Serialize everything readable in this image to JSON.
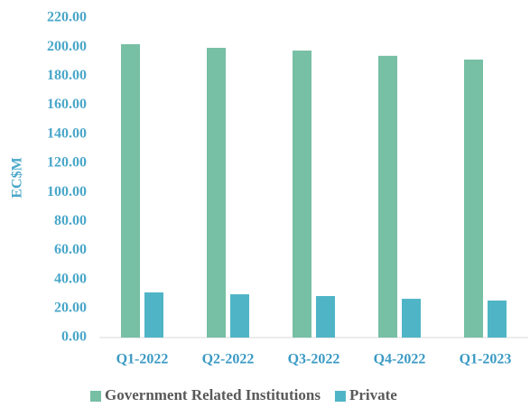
{
  "chart_data": {
    "type": "bar",
    "y_label": "EC$M",
    "categories": [
      "Q1-2022",
      "Q2-2022",
      "Q3-2022",
      "Q4-2022",
      "Q1-2023"
    ],
    "series": [
      {
        "name": "Government Related Institutions",
        "color": "#77bfa5",
        "values": [
          202,
          199.5,
          197.6,
          194,
          191.4
        ]
      },
      {
        "name": "Private",
        "color": "#4fb5c6",
        "values": [
          31.1,
          29.8,
          28.6,
          26.7,
          25.5
        ]
      }
    ],
    "ylim": [
      0,
      220
    ],
    "yticks": [
      {
        "value": 0,
        "label": "0.00"
      },
      {
        "value": 20,
        "label": "20.00"
      },
      {
        "value": 40,
        "label": "40.00"
      },
      {
        "value": 60,
        "label": "60.00"
      },
      {
        "value": 80,
        "label": "80.00"
      },
      {
        "value": 100,
        "label": "100.00"
      },
      {
        "value": 120,
        "label": "120.00"
      },
      {
        "value": 140,
        "label": "140.00"
      },
      {
        "value": 160,
        "label": "160.00"
      },
      {
        "value": 180,
        "label": "180.00"
      },
      {
        "value": 200,
        "label": "200.00"
      },
      {
        "value": 220,
        "label": "220.00"
      }
    ],
    "legend": "bottom"
  }
}
